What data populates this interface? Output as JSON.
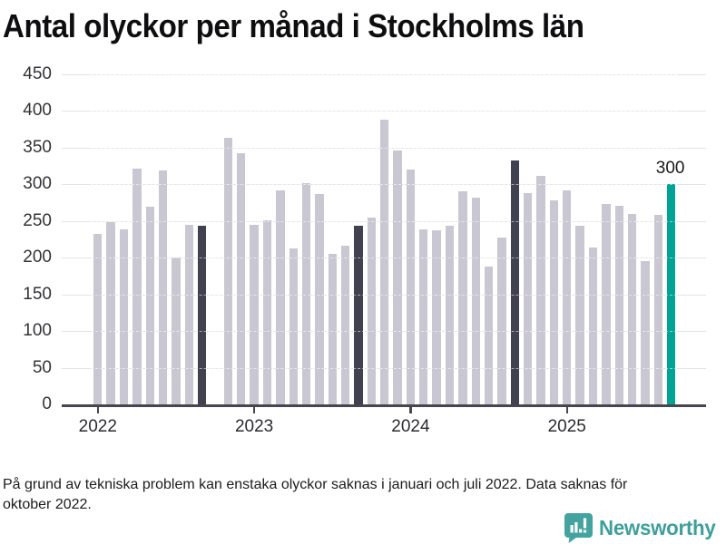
{
  "title": "Antal olyckor per månad i Stockholms län",
  "footnote": "På grund av tekniska problem kan enstaka olyckor saknas i januari och juli 2022. Data saknas för oktober 2022.",
  "branding": {
    "name": "Newsworthy",
    "icon": "newsworthy-speech-bubble-bar-chart-icon"
  },
  "colors": {
    "bar_default": "#c9c7d1",
    "bar_reference_dark": "#42414f",
    "bar_current_teal": "#00a396",
    "gridline": "#e4e3e7",
    "axis": "#47464e",
    "brand_teal": "#3f9f9b",
    "label_text": "#1a1a1c"
  },
  "chart_data": {
    "type": "bar",
    "title": "Antal olyckor per månad i Stockholms län",
    "xlabel": "",
    "ylabel": "",
    "ylim": [
      0,
      450
    ],
    "ytick_step": 50,
    "ytick_labels": [
      "0",
      "50",
      "100",
      "150",
      "200",
      "250",
      "300",
      "350",
      "400",
      "450"
    ],
    "xtick_labels": [
      "2022",
      "2023",
      "2024",
      "2025"
    ],
    "grid": "horizontal",
    "legend_position": "none",
    "missing_months": [
      "2022-10"
    ],
    "annotation": {
      "month": "2025-09",
      "label": "300"
    },
    "points": [
      {
        "month": "2022-01",
        "value": 233,
        "highlight": "none"
      },
      {
        "month": "2022-02",
        "value": 249,
        "highlight": "none"
      },
      {
        "month": "2022-03",
        "value": 238,
        "highlight": "none"
      },
      {
        "month": "2022-04",
        "value": 322,
        "highlight": "none"
      },
      {
        "month": "2022-05",
        "value": 270,
        "highlight": "none"
      },
      {
        "month": "2022-06",
        "value": 319,
        "highlight": "none"
      },
      {
        "month": "2022-07",
        "value": 200,
        "highlight": "none"
      },
      {
        "month": "2022-08",
        "value": 245,
        "highlight": "none"
      },
      {
        "month": "2022-09",
        "value": 243,
        "highlight": "dark"
      },
      {
        "month": "2022-11",
        "value": 363,
        "highlight": "none"
      },
      {
        "month": "2022-12",
        "value": 342,
        "highlight": "none"
      },
      {
        "month": "2023-01",
        "value": 245,
        "highlight": "none"
      },
      {
        "month": "2023-02",
        "value": 251,
        "highlight": "none"
      },
      {
        "month": "2023-03",
        "value": 292,
        "highlight": "none"
      },
      {
        "month": "2023-04",
        "value": 212,
        "highlight": "none"
      },
      {
        "month": "2023-05",
        "value": 302,
        "highlight": "none"
      },
      {
        "month": "2023-06",
        "value": 287,
        "highlight": "none"
      },
      {
        "month": "2023-07",
        "value": 205,
        "highlight": "none"
      },
      {
        "month": "2023-08",
        "value": 216,
        "highlight": "none"
      },
      {
        "month": "2023-09",
        "value": 244,
        "highlight": "dark"
      },
      {
        "month": "2023-10",
        "value": 255,
        "highlight": "none"
      },
      {
        "month": "2023-11",
        "value": 388,
        "highlight": "none"
      },
      {
        "month": "2023-12",
        "value": 346,
        "highlight": "none"
      },
      {
        "month": "2024-01",
        "value": 320,
        "highlight": "none"
      },
      {
        "month": "2024-02",
        "value": 239,
        "highlight": "none"
      },
      {
        "month": "2024-03",
        "value": 237,
        "highlight": "none"
      },
      {
        "month": "2024-04",
        "value": 243,
        "highlight": "none"
      },
      {
        "month": "2024-05",
        "value": 291,
        "highlight": "none"
      },
      {
        "month": "2024-06",
        "value": 282,
        "highlight": "none"
      },
      {
        "month": "2024-07",
        "value": 188,
        "highlight": "none"
      },
      {
        "month": "2024-08",
        "value": 228,
        "highlight": "none"
      },
      {
        "month": "2024-09",
        "value": 332,
        "highlight": "dark"
      },
      {
        "month": "2024-10",
        "value": 288,
        "highlight": "none"
      },
      {
        "month": "2024-11",
        "value": 312,
        "highlight": "none"
      },
      {
        "month": "2024-12",
        "value": 278,
        "highlight": "none"
      },
      {
        "month": "2025-01",
        "value": 292,
        "highlight": "none"
      },
      {
        "month": "2025-02",
        "value": 244,
        "highlight": "none"
      },
      {
        "month": "2025-03",
        "value": 214,
        "highlight": "none"
      },
      {
        "month": "2025-04",
        "value": 273,
        "highlight": "none"
      },
      {
        "month": "2025-05",
        "value": 271,
        "highlight": "none"
      },
      {
        "month": "2025-06",
        "value": 260,
        "highlight": "none"
      },
      {
        "month": "2025-07",
        "value": 195,
        "highlight": "none"
      },
      {
        "month": "2025-08",
        "value": 258,
        "highlight": "none"
      },
      {
        "month": "2025-09",
        "value": 300,
        "highlight": "current"
      }
    ]
  }
}
